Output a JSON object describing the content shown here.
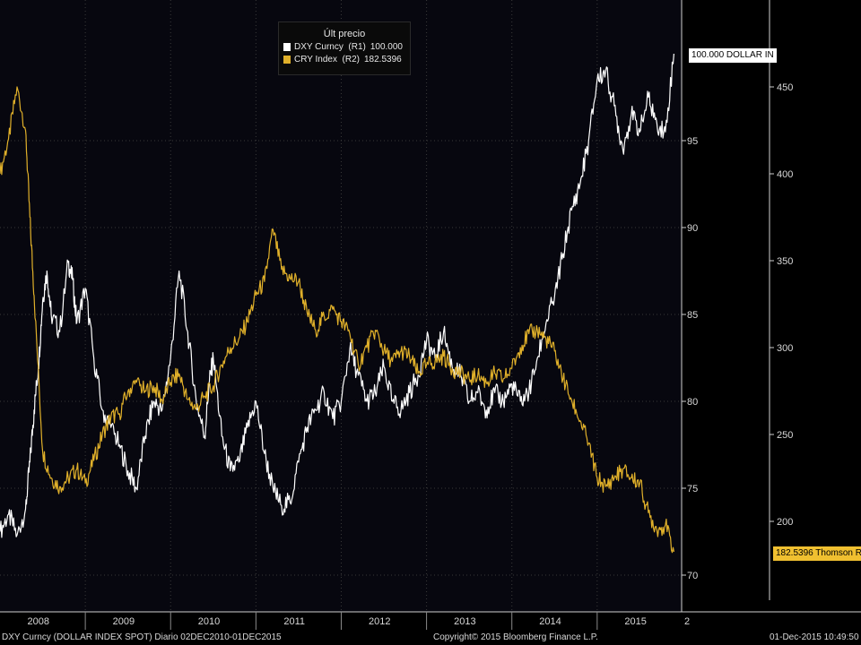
{
  "chart_data": {
    "type": "line",
    "legend_title": "Últ precio",
    "legend_placement": "top-center",
    "grid": true,
    "x_labels": [
      "2008",
      "2009",
      "2010",
      "2011",
      "2012",
      "2013",
      "2014",
      "2015",
      "2"
    ],
    "x_unit": "year",
    "y_left": {
      "ticks": [
        70,
        75,
        80,
        85,
        90,
        95
      ],
      "range": [
        69.7,
        99.0
      ]
    },
    "y_right": {
      "ticks": [
        200,
        250,
        300,
        350,
        400,
        450
      ],
      "range": [
        170,
        477
      ]
    },
    "series": [
      {
        "name": "DXY Curncy",
        "legend_label": "DXY Curncy  (R1)",
        "last_value_label": "100.000",
        "tag_label": "100.000 DOLLAR IN",
        "color": "#ffffff",
        "axis": "left",
        "x": [
          2008.0,
          2008.1,
          2008.2,
          2008.3,
          2008.35,
          2008.4,
          2008.45,
          2008.5,
          2008.55,
          2008.6,
          2008.7,
          2008.8,
          2008.85,
          2008.9,
          2009.0,
          2009.1,
          2009.2,
          2009.3,
          2009.4,
          2009.5,
          2009.6,
          2009.7,
          2009.8,
          2009.9,
          2010.0,
          2010.1,
          2010.2,
          2010.3,
          2010.4,
          2010.45,
          2010.5,
          2010.6,
          2010.7,
          2010.8,
          2010.9,
          2011.0,
          2011.1,
          2011.2,
          2011.3,
          2011.4,
          2011.5,
          2011.6,
          2011.7,
          2011.8,
          2011.9,
          2012.0,
          2012.1,
          2012.2,
          2012.3,
          2012.4,
          2012.5,
          2012.6,
          2012.7,
          2012.8,
          2012.9,
          2013.0,
          2013.1,
          2013.2,
          2013.3,
          2013.4,
          2013.5,
          2013.6,
          2013.7,
          2013.8,
          2013.9,
          2014.0,
          2014.1,
          2014.2,
          2014.3,
          2014.4,
          2014.5,
          2014.6,
          2014.7,
          2014.8,
          2014.9,
          2015.0,
          2015.1,
          2015.2,
          2015.3,
          2015.4,
          2015.5,
          2015.6,
          2015.7,
          2015.8,
          2015.9
        ],
        "values": [
          72.5,
          73.5,
          72.3,
          73.8,
          76.5,
          79.5,
          82.0,
          85.8,
          87.5,
          85.0,
          84.0,
          88.0,
          87.0,
          84.5,
          86.5,
          82.5,
          79.5,
          78.5,
          77.5,
          76.0,
          75.0,
          78.0,
          80.0,
          79.5,
          82.5,
          87.5,
          84.0,
          80.0,
          78.0,
          81.0,
          82.5,
          78.0,
          76.0,
          76.5,
          78.5,
          80.0,
          77.0,
          75.0,
          74.0,
          74.2,
          76.5,
          78.5,
          79.5,
          80.5,
          79.0,
          80.0,
          83.0,
          81.5,
          80.0,
          80.5,
          82.0,
          80.0,
          79.5,
          80.5,
          81.5,
          83.5,
          82.5,
          84.0,
          82.0,
          81.5,
          80.0,
          80.5,
          79.5,
          80.5,
          80.0,
          81.0,
          80.0,
          80.5,
          82.5,
          84.5,
          86.0,
          88.5,
          91.0,
          92.5,
          95.0,
          98.5,
          99.0,
          97.0,
          94.5,
          96.5,
          95.5,
          97.5,
          96.0,
          95.5,
          100.0
        ]
      },
      {
        "name": "CRY Index",
        "legend_label": "CRY Index  (R2)",
        "last_value_label": "182.5396",
        "tag_label": "182.5396 Thomson R",
        "color": "#e0b02a",
        "axis": "right",
        "x": [
          2008.0,
          2008.1,
          2008.2,
          2008.3,
          2008.35,
          2008.4,
          2008.5,
          2008.6,
          2008.7,
          2008.8,
          2008.9,
          2009.0,
          2009.1,
          2009.2,
          2009.3,
          2009.4,
          2009.5,
          2009.6,
          2009.7,
          2009.8,
          2009.9,
          2010.0,
          2010.1,
          2010.2,
          2010.3,
          2010.4,
          2010.5,
          2010.6,
          2010.7,
          2010.8,
          2010.9,
          2011.0,
          2011.1,
          2011.2,
          2011.3,
          2011.4,
          2011.5,
          2011.6,
          2011.7,
          2011.8,
          2011.9,
          2012.0,
          2012.1,
          2012.2,
          2012.3,
          2012.4,
          2012.5,
          2012.6,
          2012.7,
          2012.8,
          2012.9,
          2013.0,
          2013.1,
          2013.2,
          2013.3,
          2013.4,
          2013.5,
          2013.6,
          2013.7,
          2013.8,
          2013.9,
          2014.0,
          2014.1,
          2014.2,
          2014.3,
          2014.4,
          2014.5,
          2014.6,
          2014.7,
          2014.8,
          2014.9,
          2015.0,
          2015.1,
          2015.2,
          2015.3,
          2015.4,
          2015.5,
          2015.6,
          2015.7,
          2015.8,
          2015.9
        ],
        "values": [
          400,
          420,
          450,
          425,
          375,
          330,
          240,
          225,
          220,
          225,
          230,
          222,
          235,
          250,
          260,
          262,
          275,
          280,
          275,
          278,
          270,
          280,
          285,
          270,
          265,
          272,
          278,
          290,
          300,
          305,
          315,
          330,
          338,
          368,
          345,
          340,
          338,
          320,
          310,
          318,
          322,
          315,
          308,
          290,
          300,
          310,
          298,
          292,
          298,
          295,
          285,
          290,
          292,
          295,
          288,
          285,
          282,
          284,
          280,
          285,
          282,
          288,
          300,
          308,
          310,
          305,
          298,
          282,
          270,
          258,
          245,
          225,
          220,
          225,
          230,
          225,
          222,
          205,
          195,
          198,
          182.5
        ]
      }
    ]
  },
  "footer": {
    "left": "DXY Curncy (DOLLAR INDEX SPOT)  Diario 02DEC2010-01DEC2015",
    "center": "Copyright© 2015 Bloomberg Finance L.P.",
    "right": "01-Dec-2015 10:49:50"
  }
}
